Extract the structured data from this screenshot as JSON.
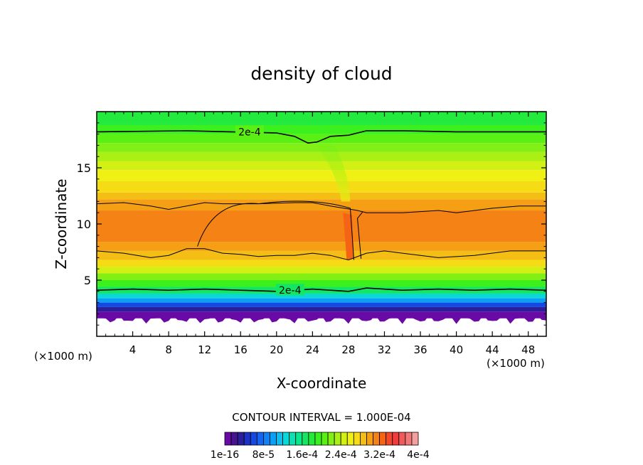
{
  "chart_data": {
    "type": "heatmap",
    "title": "density of cloud",
    "xlabel": "X-coordinate",
    "ylabel": "Z-coordinate",
    "x_unit_left": "(×1000 m)",
    "x_unit_right": "(×1000 m)",
    "xlim": [
      0,
      50
    ],
    "ylim": [
      0,
      20
    ],
    "x_ticks": [
      4,
      8,
      12,
      16,
      20,
      24,
      28,
      32,
      36,
      40,
      44,
      48
    ],
    "y_ticks": [
      5,
      10,
      15
    ],
    "contour_labels": [
      {
        "text": "2e-4",
        "x": 17,
        "z": 18.2
      },
      {
        "text": "2e-4",
        "x": 21.5,
        "z": 4.1
      }
    ],
    "contour_interval_text": "CONTOUR INTERVAL = 1.000E-04",
    "colorbar": {
      "colors": [
        "#6a0aa6",
        "#46148f",
        "#2b1e9a",
        "#1c32c4",
        "#1448e0",
        "#1464f0",
        "#0f82f5",
        "#0aa0f5",
        "#0ac0ee",
        "#0ad8d8",
        "#0ae2b4",
        "#0ae68c",
        "#14e664",
        "#23ea3c",
        "#3cf01e",
        "#5af014",
        "#82f014",
        "#aaf014",
        "#d2f014",
        "#f0f014",
        "#f5dc14",
        "#f5be14",
        "#f5a014",
        "#f58214",
        "#f56414",
        "#f54628",
        "#f03c3c",
        "#f05a5a",
        "#f07878",
        "#f5a0a0"
      ],
      "labels": [
        "1e-16",
        "8e-5",
        "1.6e-4",
        "2.4e-4",
        "3.2e-4",
        "4e-4"
      ]
    },
    "bands": [
      {
        "z": [
          0.0,
          1.6
        ],
        "color": "#ffffff"
      },
      {
        "z": [
          1.6,
          2.2
        ],
        "color": "#6a0aa6"
      },
      {
        "z": [
          2.2,
          2.6
        ],
        "color": "#2b1e9a"
      },
      {
        "z": [
          2.6,
          3.0
        ],
        "color": "#1448e0"
      },
      {
        "z": [
          3.0,
          3.4
        ],
        "color": "#0aa0f5"
      },
      {
        "z": [
          3.4,
          3.8
        ],
        "color": "#0ad8d8"
      },
      {
        "z": [
          3.8,
          4.4
        ],
        "color": "#14e664"
      },
      {
        "z": [
          4.4,
          5.0
        ],
        "color": "#3cf01e"
      },
      {
        "z": [
          5.0,
          5.6
        ],
        "color": "#82f014"
      },
      {
        "z": [
          5.6,
          6.2
        ],
        "color": "#d2f014"
      },
      {
        "z": [
          6.2,
          6.8
        ],
        "color": "#f5dc14"
      },
      {
        "z": [
          6.8,
          7.6
        ],
        "color": "#f5be14"
      },
      {
        "z": [
          7.6,
          8.4
        ],
        "color": "#f5a014"
      },
      {
        "z": [
          8.4,
          11.2
        ],
        "color": "#f58214"
      },
      {
        "z": [
          11.2,
          12.2
        ],
        "color": "#f5a014"
      },
      {
        "z": [
          12.2,
          12.8
        ],
        "color": "#f5be14"
      },
      {
        "z": [
          12.8,
          13.8
        ],
        "color": "#f5dc14"
      },
      {
        "z": [
          13.8,
          14.8
        ],
        "color": "#f0f014"
      },
      {
        "z": [
          14.8,
          15.6
        ],
        "color": "#d2f014"
      },
      {
        "z": [
          15.6,
          16.4
        ],
        "color": "#aaf014"
      },
      {
        "z": [
          16.4,
          17.2
        ],
        "color": "#82f014"
      },
      {
        "z": [
          17.2,
          18.0
        ],
        "color": "#5af014"
      },
      {
        "z": [
          18.0,
          18.8
        ],
        "color": "#3cf01e"
      },
      {
        "z": [
          18.8,
          20.0
        ],
        "color": "#23ea3c"
      }
    ],
    "contours": {
      "top_2e4": [
        [
          0,
          18.2
        ],
        [
          10,
          18.3
        ],
        [
          20,
          18.1
        ],
        [
          22,
          17.8
        ],
        [
          23.5,
          17.2
        ],
        [
          24.5,
          17.3
        ],
        [
          26,
          17.8
        ],
        [
          28,
          17.9
        ],
        [
          30,
          18.3
        ],
        [
          34,
          18.3
        ],
        [
          40,
          18.2
        ],
        [
          50,
          18.2
        ]
      ],
      "upper": [
        [
          0,
          11.8
        ],
        [
          3,
          11.9
        ],
        [
          6,
          11.6
        ],
        [
          8,
          11.3
        ],
        [
          10,
          11.6
        ],
        [
          12,
          11.9
        ],
        [
          14,
          11.8
        ],
        [
          18,
          11.8
        ],
        [
          22,
          11.9
        ],
        [
          24,
          11.9
        ],
        [
          26,
          11.6
        ],
        [
          29,
          11.2
        ],
        [
          30,
          11.0
        ],
        [
          34,
          11.0
        ],
        [
          38,
          11.2
        ],
        [
          40,
          11.0
        ],
        [
          44,
          11.4
        ],
        [
          47,
          11.6
        ],
        [
          50,
          11.6
        ]
      ],
      "lower": [
        [
          0,
          7.6
        ],
        [
          3,
          7.4
        ],
        [
          6,
          7.0
        ],
        [
          8,
          7.2
        ],
        [
          10,
          7.8
        ],
        [
          12,
          7.8
        ],
        [
          14,
          7.4
        ],
        [
          16,
          7.3
        ],
        [
          18,
          7.1
        ],
        [
          20,
          7.2
        ],
        [
          22,
          7.2
        ],
        [
          24,
          7.4
        ],
        [
          26,
          7.2
        ],
        [
          28,
          6.8
        ],
        [
          30,
          7.4
        ],
        [
          32,
          7.6
        ],
        [
          34,
          7.4
        ],
        [
          38,
          7.0
        ],
        [
          42,
          7.2
        ],
        [
          46,
          7.6
        ],
        [
          50,
          7.6
        ]
      ],
      "bottom_2e4": [
        [
          0,
          4.1
        ],
        [
          4,
          4.2
        ],
        [
          8,
          4.1
        ],
        [
          12,
          4.2
        ],
        [
          16,
          4.1
        ],
        [
          20,
          4.0
        ],
        [
          24,
          4.2
        ],
        [
          26,
          4.1
        ],
        [
          28,
          4.0
        ],
        [
          30,
          4.3
        ],
        [
          34,
          4.1
        ],
        [
          38,
          4.2
        ],
        [
          42,
          4.1
        ],
        [
          46,
          4.2
        ],
        [
          50,
          4.1
        ]
      ]
    }
  }
}
